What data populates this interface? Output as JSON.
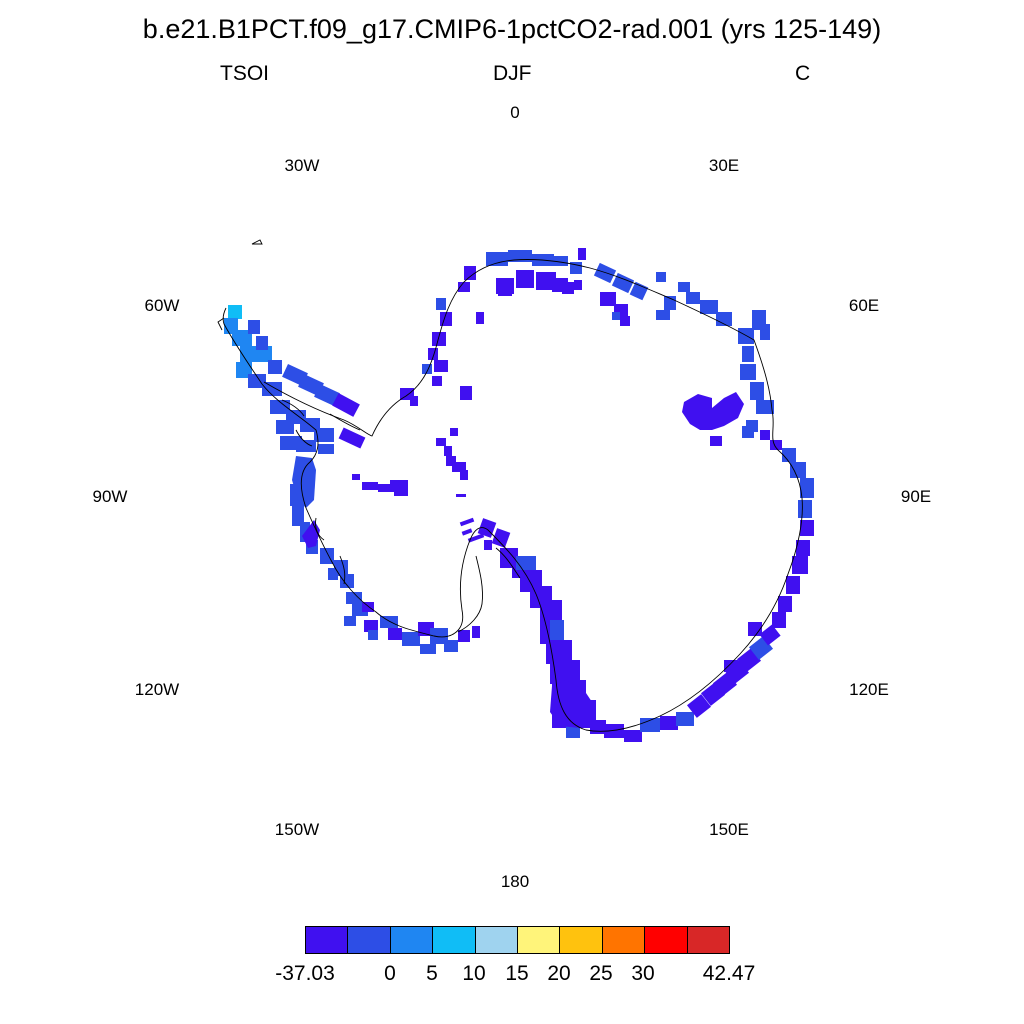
{
  "title": "b.e21.B1PCT.f09_g17.CMIP6-1pctCO2-rad.001 (yrs 125-149)",
  "subtitles": {
    "left": "TSOI",
    "center": "DJF",
    "right": "C"
  },
  "longitude_labels": {
    "lon_0": "0",
    "lon_30e": "30E",
    "lon_60e": "60E",
    "lon_90e": "90E",
    "lon_120e": "120E",
    "lon_150e": "150E",
    "lon_180": "180",
    "lon_150w": "150W",
    "lon_120w": "120W",
    "lon_90w": "90W",
    "lon_60w": "60W",
    "lon_30w": "30W"
  },
  "colorbar": {
    "colors": [
      "#4010f0",
      "#2d4ee6",
      "#1f86f2",
      "#10bdf6",
      "#9fd3ef",
      "#fff47a",
      "#ffc20e",
      "#ff7400",
      "#ff0000",
      "#d82727"
    ],
    "labels": [
      "-37.03",
      "0",
      "5",
      "10",
      "15",
      "20",
      "25",
      "30",
      "42.47"
    ]
  },
  "field_colors": {
    "cold": "#4010f0",
    "cool": "#2d4ee6",
    "mild": "#1f86f2",
    "warm": "#10bdf6"
  },
  "coastline_color": "#000000"
}
